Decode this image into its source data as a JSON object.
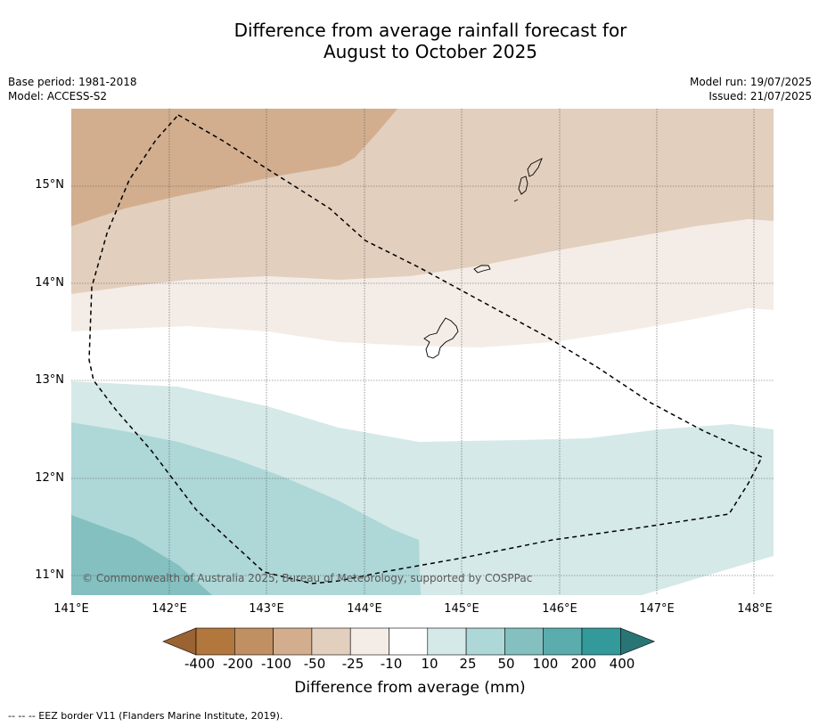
{
  "title_line1": "Difference from average rainfall forecast for",
  "title_line2": "August to October 2025",
  "meta_left": [
    "Base period: 1981-2018",
    "Model: ACCESS-S2"
  ],
  "meta_right": [
    "Model run: 19/07/2025",
    "Issued: 21/07/2025"
  ],
  "y_ticks": [
    "15°N",
    "14°N",
    "13°N",
    "12°N",
    "11°N"
  ],
  "x_ticks": [
    "141°E",
    "142°E",
    "143°E",
    "144°E",
    "145°E",
    "146°E",
    "147°E",
    "148°E"
  ],
  "copyright": "© Commonwealth of Australia 2025, Bureau of Meteorology, supported by COSPPac",
  "colorbar": {
    "labels": [
      "-400",
      "-200",
      "-100",
      "-50",
      "-25",
      "-10",
      "10",
      "25",
      "50",
      "100",
      "200",
      "400"
    ],
    "colors": [
      "#9b6232",
      "#b1773c",
      "#c09062",
      "#d2ae8f",
      "#e3cfbd",
      "#f4ede7",
      "#ffffff",
      "#d5e9e8",
      "#aed7d7",
      "#84c0c0",
      "#5aacad",
      "#34999a",
      "#297576"
    ],
    "title": "Difference from average (mm)"
  },
  "footer": "--  --  -- EEZ border V11 (Flanders Marine Institute, 2019).",
  "map": {
    "extent_lon": [
      141.0,
      148.2
    ],
    "extent_lat": [
      10.8,
      15.8
    ],
    "land_islands": [
      "Guam",
      "Rota",
      "Tinian",
      "Saipan"
    ]
  }
}
